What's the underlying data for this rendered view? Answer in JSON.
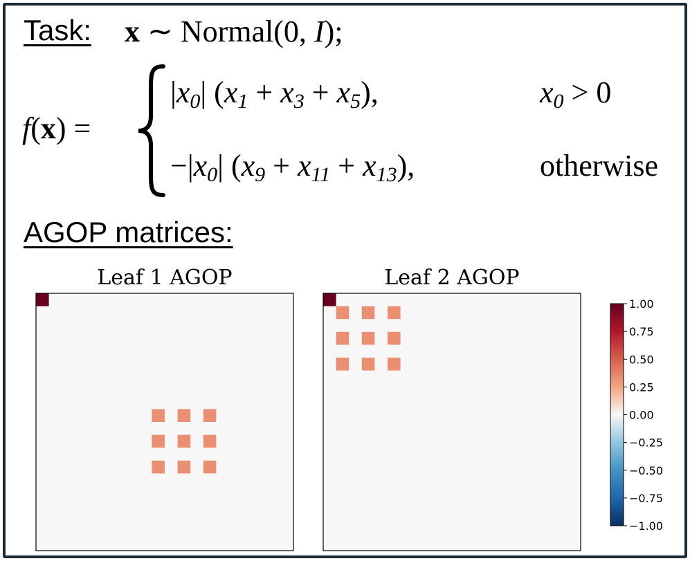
{
  "task": {
    "label": "Task:",
    "first_line": "x ~ Normal(0, I);",
    "lhs": "f(x) =",
    "case1": {
      "expr": "|x0| (x1 + x3 + x5),",
      "cond": "x0 > 0"
    },
    "case2": {
      "expr": "−|x0| (x9 + x11 + x13),",
      "cond": "otherwise"
    }
  },
  "agop": {
    "label": "AGOP matrices:"
  },
  "chart_data": {
    "type": "heatmap",
    "colormap": "RdBu_r",
    "vmin": -1.0,
    "vmax": 1.0,
    "grid_size": 20,
    "colorbar_ticks": [
      "1.00",
      "0.75",
      "0.50",
      "0.25",
      "0.00",
      "−0.25",
      "−0.50",
      "−0.75",
      "−1.00"
    ],
    "panels": [
      {
        "title": "Leaf 1 AGOP",
        "cells": [
          {
            "row": 0,
            "col": 0,
            "value": 1.0
          },
          {
            "row": 9,
            "col": 9,
            "value": 0.33
          },
          {
            "row": 9,
            "col": 11,
            "value": 0.33
          },
          {
            "row": 9,
            "col": 13,
            "value": 0.33
          },
          {
            "row": 11,
            "col": 9,
            "value": 0.33
          },
          {
            "row": 11,
            "col": 11,
            "value": 0.33
          },
          {
            "row": 11,
            "col": 13,
            "value": 0.33
          },
          {
            "row": 13,
            "col": 9,
            "value": 0.33
          },
          {
            "row": 13,
            "col": 11,
            "value": 0.33
          },
          {
            "row": 13,
            "col": 13,
            "value": 0.33
          }
        ]
      },
      {
        "title": "Leaf 2 AGOP",
        "cells": [
          {
            "row": 0,
            "col": 0,
            "value": 1.0
          },
          {
            "row": 1,
            "col": 1,
            "value": 0.33
          },
          {
            "row": 1,
            "col": 3,
            "value": 0.33
          },
          {
            "row": 1,
            "col": 5,
            "value": 0.33
          },
          {
            "row": 3,
            "col": 1,
            "value": 0.33
          },
          {
            "row": 3,
            "col": 3,
            "value": 0.33
          },
          {
            "row": 3,
            "col": 5,
            "value": 0.33
          },
          {
            "row": 5,
            "col": 1,
            "value": 0.33
          },
          {
            "row": 5,
            "col": 3,
            "value": 0.33
          },
          {
            "row": 5,
            "col": 5,
            "value": 0.33
          }
        ]
      }
    ]
  }
}
